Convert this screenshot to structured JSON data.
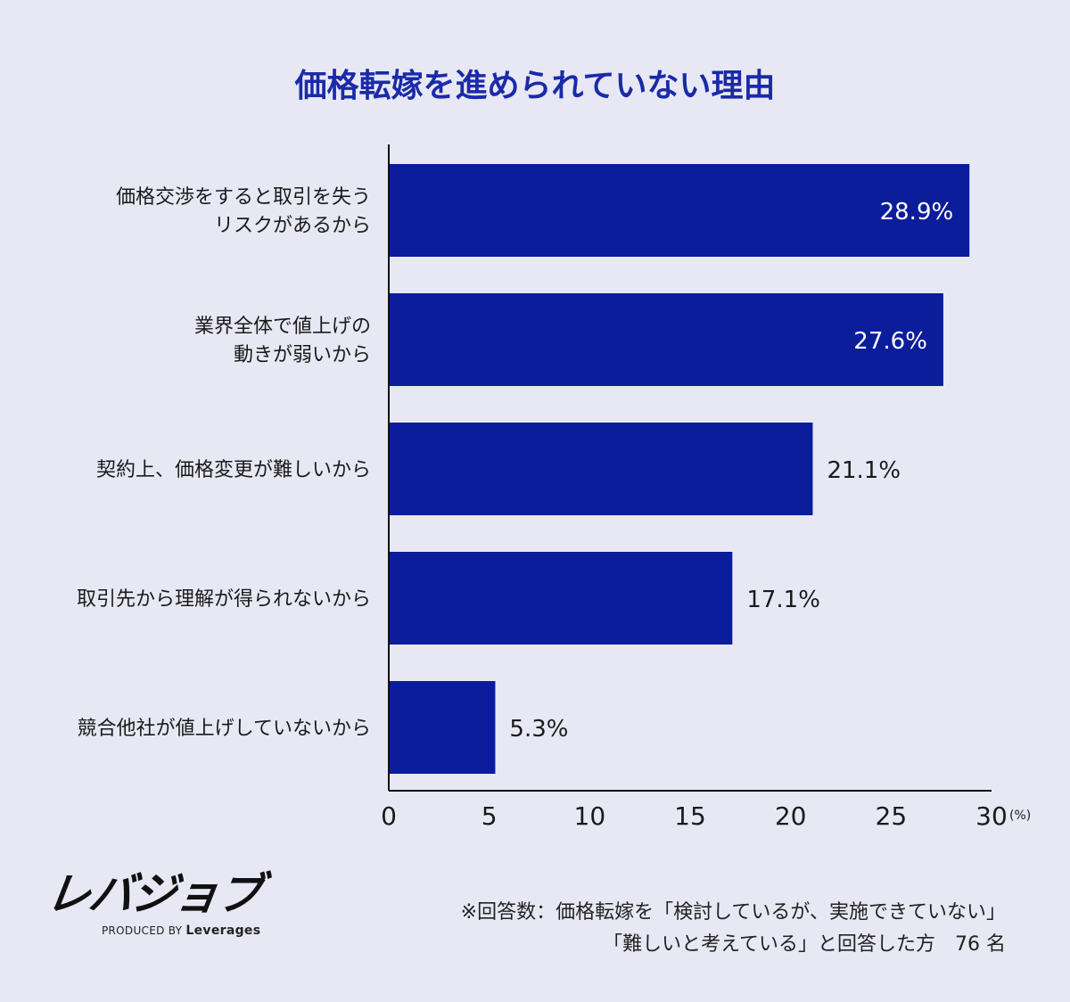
{
  "chart_data": {
    "type": "bar",
    "orientation": "horizontal",
    "title": "価格転嫁を進められていない理由",
    "categories": [
      [
        "価格交渉をすると取引を失う",
        "リスクがあるから"
      ],
      [
        "業界全体で値上げの",
        "動きが弱いから"
      ],
      [
        "契約上、価格変更が難しいから"
      ],
      [
        "取引先から理解が得られないから"
      ],
      [
        "競合他社が値上げしていないから"
      ]
    ],
    "values": [
      28.9,
      27.6,
      21.1,
      17.1,
      5.3
    ],
    "value_labels": [
      "28.9%",
      "27.6%",
      "21.1%",
      "17.1%",
      "5.3%"
    ],
    "xlim": [
      0,
      30
    ],
    "xticks": [
      "0",
      "5",
      "10",
      "15",
      "20",
      "25",
      "30"
    ],
    "xunit": "(%)",
    "grid": false,
    "legend": "none",
    "bar_color": "#0b1d9a"
  },
  "colors": {
    "background": "#e8e8f5",
    "title": "#1a2aa8",
    "bar": "#0b1d9a",
    "text": "#1a1a1a",
    "inside_label": "#ffffff"
  },
  "logo": {
    "name": "レバジョブ",
    "produced_by": "PRODUCED BY",
    "brand": "Leverages"
  },
  "note": {
    "line1": "※回答数：価格転嫁を「検討しているが、実施できていない」",
    "line2": "「難しいと考えている」と回答した方　76 名"
  }
}
